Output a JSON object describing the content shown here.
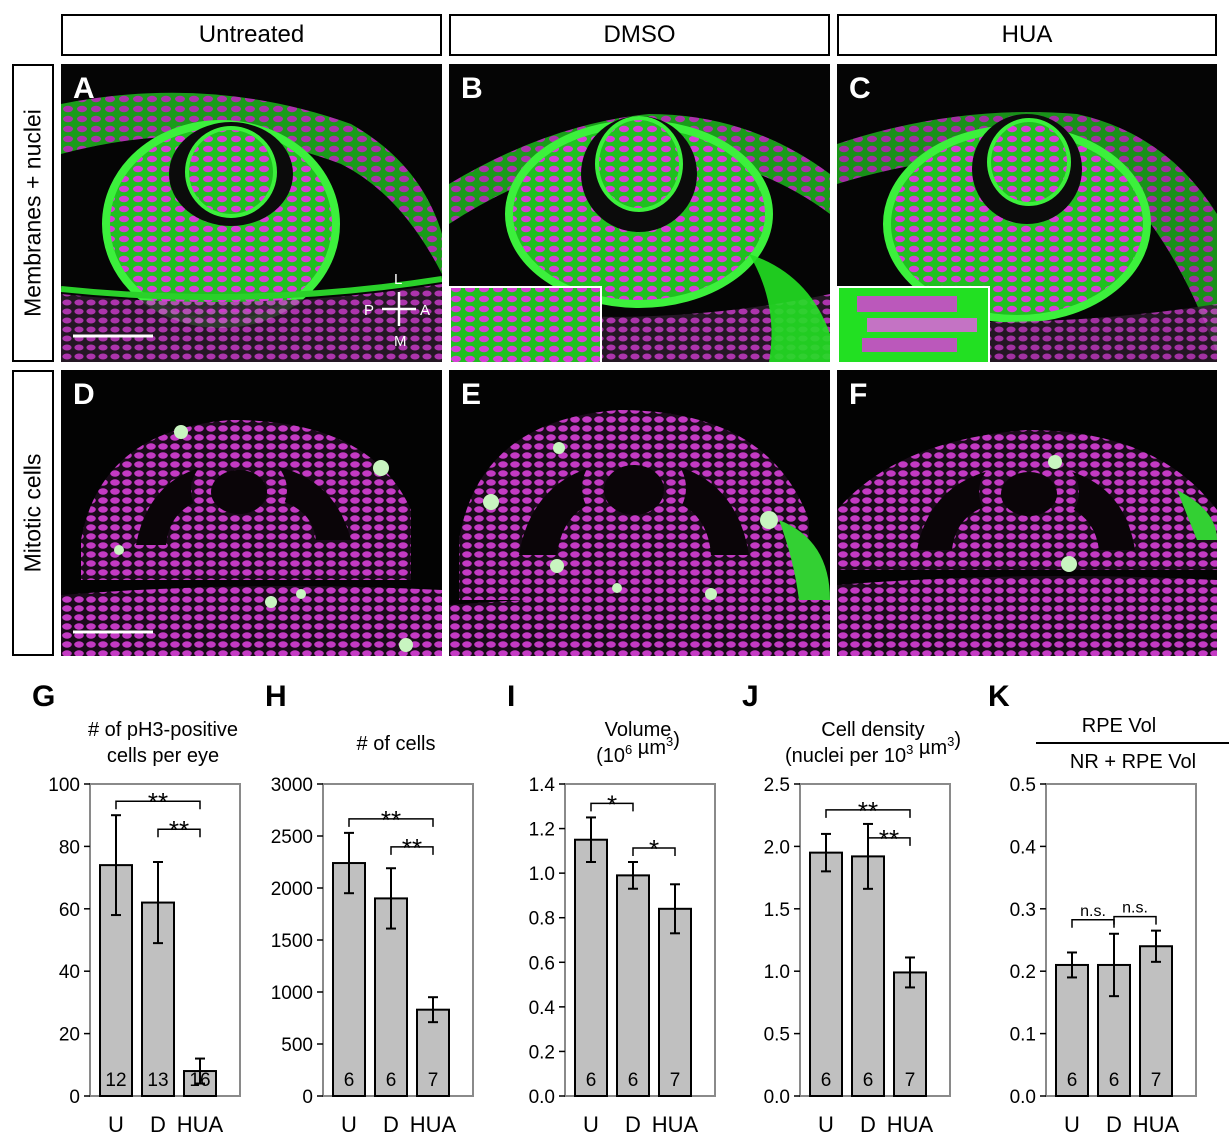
{
  "column_headers": [
    "Untreated",
    "DMSO",
    "HUA"
  ],
  "row_headers": [
    "Membranes + nuclei",
    "Mitotic cells"
  ],
  "image_panels": {
    "A": "A",
    "B": "B",
    "C": "C",
    "D": "D",
    "E": "E",
    "F": "F"
  },
  "orientation": {
    "L": "L",
    "M": "M",
    "P": "P",
    "A": "A"
  },
  "colors": {
    "membrane": "#22e022",
    "nuclei": "#d63fd6",
    "mitotic": "#c8f5c0",
    "bar": "#c0c0c0"
  },
  "chart_data": [
    {
      "panel": "G",
      "type": "bar",
      "title_lines": [
        "# of pH3-positive",
        "cells per eye"
      ],
      "categories": [
        "U",
        "D",
        "HUA"
      ],
      "values": [
        74,
        62,
        8
      ],
      "errors": [
        16,
        13,
        4
      ],
      "n": [
        "12",
        "13",
        "16"
      ],
      "ylim": [
        0,
        100
      ],
      "yticks": [
        0,
        20,
        40,
        60,
        80,
        100
      ],
      "tick_decimals": 0,
      "significance": [
        {
          "from": 0,
          "to": 2,
          "label": "**"
        },
        {
          "from": 1,
          "to": 2,
          "label": "**"
        }
      ]
    },
    {
      "panel": "H",
      "type": "bar",
      "title_lines": [
        "# of cells"
      ],
      "categories": [
        "U",
        "D",
        "HUA"
      ],
      "values": [
        2240,
        1900,
        830
      ],
      "errors": [
        290,
        290,
        120
      ],
      "n": [
        "6",
        "6",
        "7"
      ],
      "ylim": [
        0,
        3000
      ],
      "yticks": [
        0,
        500,
        1000,
        1500,
        2000,
        2500,
        3000
      ],
      "tick_decimals": 0,
      "significance": [
        {
          "from": 0,
          "to": 2,
          "label": "**"
        },
        {
          "from": 1,
          "to": 2,
          "label": "**"
        }
      ]
    },
    {
      "panel": "I",
      "type": "bar",
      "title_lines": [
        "Volume",
        "(10^6 µm^3)"
      ],
      "categories": [
        "U",
        "D",
        "HUA"
      ],
      "values": [
        1.15,
        0.99,
        0.84
      ],
      "errors": [
        0.1,
        0.06,
        0.11
      ],
      "n": [
        "6",
        "6",
        "7"
      ],
      "ylim": [
        0,
        1.4
      ],
      "yticks": [
        0,
        0.2,
        0.4,
        0.6,
        0.8,
        1.0,
        1.2,
        1.4
      ],
      "tick_decimals": 1,
      "significance": [
        {
          "from": 0,
          "to": 1,
          "label": "*"
        },
        {
          "from": 1,
          "to": 2,
          "label": "*"
        }
      ]
    },
    {
      "panel": "J",
      "type": "bar",
      "title_lines": [
        "Cell density",
        "(nuclei per 10^3 µm^3)"
      ],
      "categories": [
        "U",
        "D",
        "HUA"
      ],
      "values": [
        1.95,
        1.92,
        0.99
      ],
      "errors": [
        0.15,
        0.26,
        0.12
      ],
      "n": [
        "6",
        "6",
        "7"
      ],
      "ylim": [
        0,
        2.5
      ],
      "yticks": [
        0,
        0.5,
        1.0,
        1.5,
        2.0,
        2.5
      ],
      "tick_decimals": 1,
      "significance": [
        {
          "from": 0,
          "to": 2,
          "label": "**"
        },
        {
          "from": 1,
          "to": 2,
          "label": "**"
        }
      ]
    },
    {
      "panel": "K",
      "type": "bar",
      "title_lines": [
        "RPE Vol",
        "NR + RPE Vol"
      ],
      "title_fraction": true,
      "categories": [
        "U",
        "D",
        "HUA"
      ],
      "values": [
        0.21,
        0.21,
        0.24
      ],
      "errors": [
        0.02,
        0.05,
        0.025
      ],
      "n": [
        "6",
        "6",
        "7"
      ],
      "ylim": [
        0,
        0.5
      ],
      "yticks": [
        0,
        0.1,
        0.2,
        0.3,
        0.4,
        0.5
      ],
      "tick_decimals": 1,
      "significance": [
        {
          "from": 0,
          "to": 1,
          "label": "n.s."
        },
        {
          "from": 1,
          "to": 2,
          "label": "n.s."
        }
      ]
    }
  ]
}
